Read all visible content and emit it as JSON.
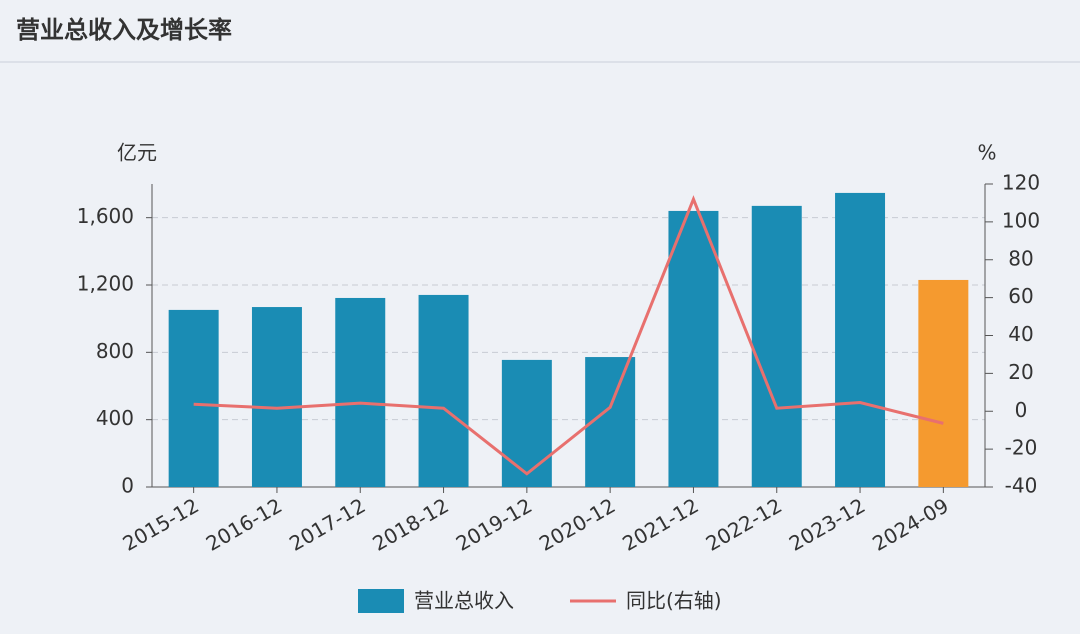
{
  "chart_data": {
    "type": "combo",
    "title": "营业总收入及增长率",
    "y_label": "亿元",
    "y2_label": "%",
    "categories": [
      "2015-12",
      "2016-12",
      "2017-12",
      "2018-12",
      "2019-12",
      "2020-12",
      "2021-12",
      "2022-12",
      "2023-12",
      "2024-09"
    ],
    "series": [
      {
        "name": "营业总收入",
        "type": "bar",
        "color": "#1a8cb4",
        "bar_colors": [
          "#1a8cb4",
          "#1a8cb4",
          "#1a8cb4",
          "#1a8cb4",
          "#1a8cb4",
          "#1a8cb4",
          "#1a8cb4",
          "#1a8cb4",
          "#1a8cb4",
          "#f59a2f"
        ],
        "values": [
          1052,
          1069,
          1123,
          1141,
          755,
          772,
          1640,
          1670,
          1747,
          1230
        ]
      },
      {
        "name": "同比(右轴)",
        "type": "line",
        "axis": "y2",
        "color": "#e8706e",
        "values": [
          3.7,
          1.6,
          4.3,
          1.6,
          -33,
          2.1,
          112,
          1.6,
          4.6,
          -6.4
        ]
      }
    ],
    "ylim": [
      0,
      1800
    ],
    "yticks": [
      0,
      400,
      800,
      {
        "value": 1200,
        "label": "1,200"
      },
      {
        "value": 1600,
        "label": "1,600"
      }
    ],
    "y2lim": [
      -40,
      120
    ],
    "y2ticks": [
      -40,
      -20,
      0,
      20,
      40,
      60,
      80,
      100,
      120
    ],
    "grid": true
  }
}
